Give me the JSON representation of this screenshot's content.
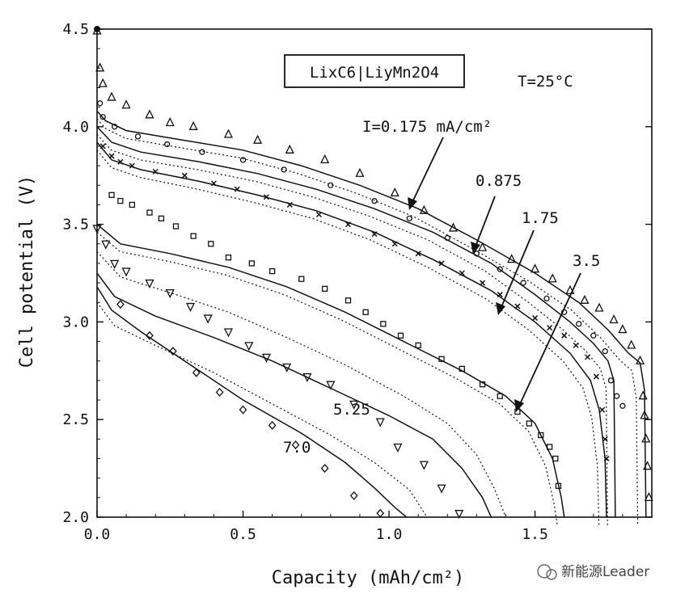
{
  "chart_data": {
    "type": "line",
    "title": "",
    "xlabel": "Capacity (mAh/cm²)",
    "ylabel": "Cell potential (V)",
    "xlim": [
      0.0,
      1.9
    ],
    "ylim": [
      2.0,
      4.5
    ],
    "x_ticks": [
      "0.0",
      "0.5",
      "1.0",
      "1.5"
    ],
    "y_ticks": [
      "2.0",
      "2.5",
      "3.0",
      "3.5",
      "4.0",
      "4.5"
    ],
    "grid": false,
    "annotations": {
      "cell_label": "LixC6|LiyMn2O4",
      "temperature": "T=25°C",
      "current_prefix": "I=0.175 mA/cm²"
    },
    "series": [
      {
        "rate_label": "0.175",
        "marker": "triangle-up",
        "model": [
          [
            0.0,
            4.08
          ],
          [
            0.03,
            4.03
          ],
          [
            0.1,
            3.98
          ],
          [
            0.3,
            3.93
          ],
          [
            0.5,
            3.88
          ],
          [
            0.7,
            3.8
          ],
          [
            0.9,
            3.7
          ],
          [
            1.1,
            3.58
          ],
          [
            1.3,
            3.42
          ],
          [
            1.5,
            3.25
          ],
          [
            1.65,
            3.1
          ],
          [
            1.75,
            2.96
          ],
          [
            1.82,
            2.84
          ],
          [
            1.86,
            2.79
          ],
          [
            1.875,
            2.65
          ],
          [
            1.88,
            2.0
          ]
        ],
        "experiment": [
          [
            0.0,
            4.49
          ],
          [
            0.01,
            4.3
          ],
          [
            0.02,
            4.22
          ],
          [
            0.05,
            4.15
          ],
          [
            0.1,
            4.11
          ],
          [
            0.18,
            4.06
          ],
          [
            0.25,
            4.02
          ],
          [
            0.33,
            4.0
          ],
          [
            0.45,
            3.96
          ],
          [
            0.55,
            3.93
          ],
          [
            0.66,
            3.88
          ],
          [
            0.78,
            3.83
          ],
          [
            0.9,
            3.76
          ],
          [
            1.02,
            3.66
          ],
          [
            1.12,
            3.57
          ],
          [
            1.22,
            3.48
          ],
          [
            1.32,
            3.38
          ],
          [
            1.42,
            3.32
          ],
          [
            1.5,
            3.27
          ],
          [
            1.56,
            3.22
          ],
          [
            1.62,
            3.16
          ],
          [
            1.67,
            3.11
          ],
          [
            1.72,
            3.07
          ],
          [
            1.77,
            3.01
          ],
          [
            1.8,
            2.96
          ],
          [
            1.83,
            2.88
          ],
          [
            1.86,
            2.8
          ],
          [
            1.87,
            2.62
          ],
          [
            1.875,
            2.52
          ],
          [
            1.88,
            2.4
          ],
          [
            1.885,
            2.26
          ],
          [
            1.89,
            2.1
          ]
        ]
      },
      {
        "rate_label": "0.875",
        "marker": "circle",
        "model": [
          [
            0.0,
            4.0
          ],
          [
            0.05,
            3.92
          ],
          [
            0.15,
            3.87
          ],
          [
            0.35,
            3.82
          ],
          [
            0.55,
            3.76
          ],
          [
            0.75,
            3.68
          ],
          [
            0.95,
            3.58
          ],
          [
            1.15,
            3.46
          ],
          [
            1.35,
            3.3
          ],
          [
            1.5,
            3.14
          ],
          [
            1.62,
            3.0
          ],
          [
            1.7,
            2.89
          ],
          [
            1.75,
            2.8
          ],
          [
            1.77,
            2.7
          ],
          [
            1.775,
            2.0
          ]
        ],
        "experiment": [
          [
            0.01,
            4.12
          ],
          [
            0.02,
            4.05
          ],
          [
            0.06,
            4.0
          ],
          [
            0.14,
            3.95
          ],
          [
            0.24,
            3.91
          ],
          [
            0.36,
            3.87
          ],
          [
            0.5,
            3.83
          ],
          [
            0.64,
            3.78
          ],
          [
            0.8,
            3.7
          ],
          [
            0.95,
            3.62
          ],
          [
            1.07,
            3.53
          ],
          [
            1.2,
            3.43
          ],
          [
            1.3,
            3.35
          ],
          [
            1.38,
            3.27
          ],
          [
            1.46,
            3.2
          ],
          [
            1.54,
            3.12
          ],
          [
            1.6,
            3.05
          ],
          [
            1.65,
            2.99
          ],
          [
            1.7,
            2.93
          ],
          [
            1.74,
            2.85
          ],
          [
            1.76,
            2.7
          ],
          [
            1.78,
            2.62
          ],
          [
            1.8,
            2.57
          ]
        ]
      },
      {
        "rate_label": "1.75",
        "marker": "x",
        "model": [
          [
            0.0,
            3.92
          ],
          [
            0.05,
            3.83
          ],
          [
            0.15,
            3.78
          ],
          [
            0.35,
            3.72
          ],
          [
            0.55,
            3.65
          ],
          [
            0.75,
            3.57
          ],
          [
            0.95,
            3.46
          ],
          [
            1.15,
            3.32
          ],
          [
            1.35,
            3.16
          ],
          [
            1.5,
            3.0
          ],
          [
            1.62,
            2.84
          ],
          [
            1.69,
            2.7
          ],
          [
            1.72,
            2.55
          ],
          [
            1.74,
            2.3
          ],
          [
            1.745,
            2.0
          ]
        ],
        "experiment": [
          [
            0.02,
            3.9
          ],
          [
            0.05,
            3.85
          ],
          [
            0.08,
            3.82
          ],
          [
            0.12,
            3.8
          ],
          [
            0.2,
            3.77
          ],
          [
            0.3,
            3.75
          ],
          [
            0.4,
            3.71
          ],
          [
            0.48,
            3.68
          ],
          [
            0.58,
            3.64
          ],
          [
            0.66,
            3.6
          ],
          [
            0.76,
            3.55
          ],
          [
            0.86,
            3.5
          ],
          [
            0.95,
            3.45
          ],
          [
            1.02,
            3.4
          ],
          [
            1.1,
            3.35
          ],
          [
            1.18,
            3.3
          ],
          [
            1.25,
            3.25
          ],
          [
            1.32,
            3.2
          ],
          [
            1.38,
            3.14
          ],
          [
            1.44,
            3.08
          ],
          [
            1.5,
            3.02
          ],
          [
            1.55,
            2.97
          ],
          [
            1.6,
            2.93
          ],
          [
            1.64,
            2.88
          ],
          [
            1.68,
            2.82
          ],
          [
            1.71,
            2.72
          ],
          [
            1.73,
            2.55
          ],
          [
            1.74,
            2.4
          ],
          [
            1.745,
            2.3
          ]
        ]
      },
      {
        "rate_label": "3.5",
        "marker": "square",
        "model": [
          [
            0.0,
            3.5
          ],
          [
            0.08,
            3.4
          ],
          [
            0.25,
            3.35
          ],
          [
            0.45,
            3.28
          ],
          [
            0.65,
            3.18
          ],
          [
            0.85,
            3.05
          ],
          [
            1.05,
            2.9
          ],
          [
            1.25,
            2.75
          ],
          [
            1.4,
            2.62
          ],
          [
            1.5,
            2.48
          ],
          [
            1.56,
            2.3
          ],
          [
            1.59,
            2.1
          ],
          [
            1.6,
            2.0
          ]
        ],
        "experiment": [
          [
            0.05,
            3.65
          ],
          [
            0.08,
            3.62
          ],
          [
            0.12,
            3.6
          ],
          [
            0.18,
            3.56
          ],
          [
            0.22,
            3.53
          ],
          [
            0.27,
            3.49
          ],
          [
            0.33,
            3.44
          ],
          [
            0.39,
            3.4
          ],
          [
            0.45,
            3.33
          ],
          [
            0.53,
            3.3
          ],
          [
            0.6,
            3.26
          ],
          [
            0.7,
            3.22
          ],
          [
            0.78,
            3.17
          ],
          [
            0.86,
            3.11
          ],
          [
            0.92,
            3.05
          ],
          [
            0.98,
            2.99
          ],
          [
            1.04,
            2.93
          ],
          [
            1.1,
            2.88
          ],
          [
            1.18,
            2.81
          ],
          [
            1.25,
            2.76
          ],
          [
            1.32,
            2.68
          ],
          [
            1.38,
            2.62
          ],
          [
            1.44,
            2.54
          ],
          [
            1.48,
            2.48
          ],
          [
            1.52,
            2.42
          ],
          [
            1.55,
            2.36
          ],
          [
            1.57,
            2.3
          ],
          [
            1.58,
            2.16
          ]
        ]
      },
      {
        "rate_label": "5.25",
        "marker": "triangle-down",
        "model": [
          [
            0.0,
            3.25
          ],
          [
            0.06,
            3.13
          ],
          [
            0.2,
            3.03
          ],
          [
            0.4,
            2.92
          ],
          [
            0.6,
            2.8
          ],
          [
            0.8,
            2.66
          ],
          [
            1.0,
            2.52
          ],
          [
            1.15,
            2.4
          ],
          [
            1.25,
            2.25
          ],
          [
            1.32,
            2.1
          ],
          [
            1.35,
            2.0
          ]
        ],
        "experiment": [
          [
            0.0,
            3.48
          ],
          [
            0.03,
            3.4
          ],
          [
            0.06,
            3.3
          ],
          [
            0.1,
            3.26
          ],
          [
            0.18,
            3.2
          ],
          [
            0.25,
            3.15
          ],
          [
            0.32,
            3.08
          ],
          [
            0.38,
            3.02
          ],
          [
            0.45,
            2.95
          ],
          [
            0.52,
            2.88
          ],
          [
            0.58,
            2.82
          ],
          [
            0.65,
            2.77
          ],
          [
            0.72,
            2.72
          ],
          [
            0.8,
            2.68
          ],
          [
            0.88,
            2.58
          ],
          [
            0.97,
            2.49
          ],
          [
            1.03,
            2.36
          ],
          [
            1.12,
            2.27
          ],
          [
            1.18,
            2.15
          ],
          [
            1.24,
            2.02
          ]
        ]
      },
      {
        "rate_label": "7.0",
        "marker": "diamond",
        "model": [
          [
            0.0,
            3.18
          ],
          [
            0.05,
            3.06
          ],
          [
            0.15,
            2.95
          ],
          [
            0.3,
            2.8
          ],
          [
            0.5,
            2.6
          ],
          [
            0.7,
            2.43
          ],
          [
            0.85,
            2.28
          ],
          [
            0.95,
            2.15
          ],
          [
            1.02,
            2.05
          ],
          [
            1.06,
            2.0
          ]
        ],
        "experiment": [
          [
            0.08,
            3.09
          ],
          [
            0.18,
            2.93
          ],
          [
            0.26,
            2.85
          ],
          [
            0.34,
            2.74
          ],
          [
            0.42,
            2.64
          ],
          [
            0.5,
            2.55
          ],
          [
            0.6,
            2.47
          ],
          [
            0.68,
            2.37
          ],
          [
            0.78,
            2.25
          ],
          [
            0.88,
            2.11
          ],
          [
            0.97,
            2.02
          ]
        ]
      }
    ],
    "intermediate_model_curves": [
      [
        [
          0.0,
          3.36
        ],
        [
          0.08,
          3.23
        ],
        [
          0.25,
          3.15
        ],
        [
          0.45,
          3.05
        ],
        [
          0.65,
          2.92
        ],
        [
          0.85,
          2.78
        ],
        [
          1.05,
          2.62
        ],
        [
          1.2,
          2.48
        ],
        [
          1.3,
          2.32
        ],
        [
          1.36,
          2.15
        ],
        [
          1.4,
          2.0
        ]
      ],
      [
        [
          0.0,
          3.1
        ],
        [
          0.06,
          2.98
        ],
        [
          0.2,
          2.88
        ],
        [
          0.4,
          2.74
        ],
        [
          0.6,
          2.58
        ],
        [
          0.8,
          2.42
        ],
        [
          0.95,
          2.28
        ],
        [
          1.07,
          2.14
        ],
        [
          1.13,
          2.0
        ]
      ]
    ],
    "arrow_labels": [
      "0.875",
      "1.75",
      "3.5",
      "5.25",
      "7.0"
    ],
    "watermark": "新能源Leader"
  }
}
